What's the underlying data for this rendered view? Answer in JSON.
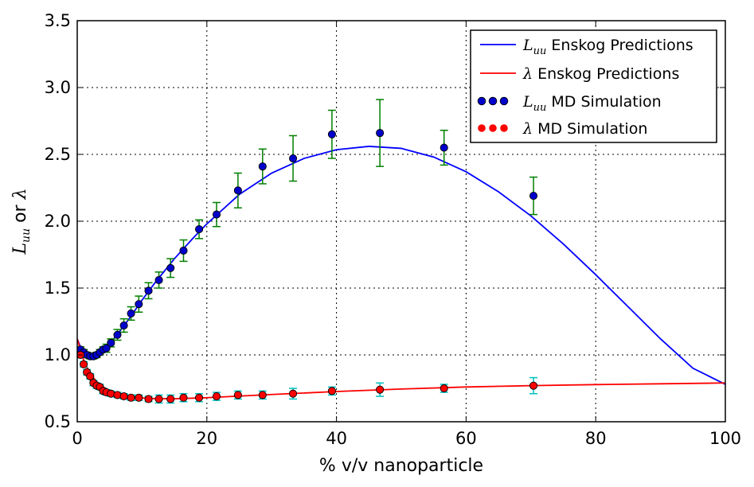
{
  "chart_data": {
    "type": "line",
    "title": "",
    "xlabel": "% v/v nanoparticle",
    "ylabel": {
      "sym1": "L",
      "sub1": "uu",
      "mid": " or ",
      "sym2": "λ"
    },
    "xlim": [
      0,
      100
    ],
    "ylim": [
      0.5,
      3.5
    ],
    "xticks": [
      0,
      20,
      40,
      60,
      80,
      100
    ],
    "yticks": [
      0.5,
      1.0,
      1.5,
      2.0,
      2.5,
      3.0,
      3.5
    ],
    "xtick_labels": [
      "0",
      "20",
      "40",
      "60",
      "80",
      "100"
    ],
    "ytick_labels": [
      "0.5",
      "1.0",
      "1.5",
      "2.0",
      "2.5",
      "3.0",
      "3.5"
    ],
    "grid": true,
    "legend_position": "top-right",
    "colors": {
      "luu_line": "#0000ff",
      "lambda_line": "#ff0000",
      "luu_points": "#0000cc",
      "luu_errorbars": "#007f00",
      "lambda_points": "#ff0000",
      "lambda_errorbars": "#00bfbf"
    },
    "legend": [
      {
        "sym": "L",
        "sub": "uu",
        "text": " Enskog Predictions",
        "kind": "line",
        "series": "luu_line"
      },
      {
        "sym": "λ",
        "sub": "",
        "text": " Enskog Predictions",
        "kind": "line",
        "series": "lambda_line"
      },
      {
        "sym": "L",
        "sub": "uu",
        "text": " MD Simulation",
        "kind": "points",
        "series": "luu_points"
      },
      {
        "sym": "λ",
        "sub": "",
        "text": " MD Simulation",
        "kind": "points",
        "series": "lambda_points"
      }
    ],
    "series": [
      {
        "id": "luu_line",
        "type": "line",
        "x": [
          0,
          0.5,
          1,
          2,
          3,
          4,
          5,
          6,
          8,
          10,
          12,
          15,
          18,
          20,
          25,
          30,
          35,
          40,
          45,
          50,
          55,
          60,
          65,
          70,
          75,
          80,
          85,
          90,
          95,
          100
        ],
        "y": [
          1.12,
          1.06,
          1.02,
          1.0,
          1.01,
          1.04,
          1.09,
          1.14,
          1.27,
          1.41,
          1.54,
          1.72,
          1.88,
          1.98,
          2.2,
          2.36,
          2.47,
          2.535,
          2.56,
          2.545,
          2.48,
          2.37,
          2.22,
          2.04,
          1.83,
          1.6,
          1.36,
          1.12,
          0.9,
          0.78
        ]
      },
      {
        "id": "lambda_line",
        "type": "line",
        "x": [
          0,
          0.5,
          1,
          2,
          3,
          4,
          5,
          6,
          8,
          10,
          12,
          15,
          20,
          25,
          30,
          40,
          50,
          60,
          70,
          80,
          90,
          100
        ],
        "y": [
          1.12,
          1.04,
          0.96,
          0.86,
          0.8,
          0.76,
          0.735,
          0.715,
          0.69,
          0.678,
          0.673,
          0.672,
          0.68,
          0.692,
          0.704,
          0.726,
          0.745,
          0.76,
          0.77,
          0.778,
          0.784,
          0.79
        ]
      },
      {
        "id": "luu_points",
        "type": "scatter",
        "x": [
          0.5,
          1.0,
          1.5,
          2.0,
          2.5,
          3.0,
          3.5,
          4.0,
          4.5,
          5.2,
          6.2,
          7.2,
          8.3,
          9.5,
          11.0,
          12.6,
          14.4,
          16.4,
          18.8,
          21.5,
          24.8,
          28.6,
          33.3,
          39.3,
          46.7,
          56.6,
          70.4
        ],
        "y": [
          1.04,
          1.02,
          1.0,
          0.99,
          0.99,
          1.0,
          1.02,
          1.04,
          1.05,
          1.09,
          1.15,
          1.22,
          1.31,
          1.38,
          1.48,
          1.56,
          1.65,
          1.78,
          1.94,
          2.05,
          2.23,
          2.41,
          2.47,
          2.65,
          2.66,
          2.55,
          2.19
        ],
        "yerr": [
          0.02,
          0.02,
          0.02,
          0.02,
          0.02,
          0.02,
          0.02,
          0.02,
          0.03,
          0.03,
          0.04,
          0.05,
          0.05,
          0.06,
          0.06,
          0.06,
          0.07,
          0.08,
          0.07,
          0.09,
          0.13,
          0.13,
          0.17,
          0.18,
          0.25,
          0.13,
          0.14
        ]
      },
      {
        "id": "lambda_points",
        "type": "scatter",
        "x": [
          0.5,
          1.0,
          1.5,
          2.0,
          2.5,
          3.0,
          3.5,
          4.0,
          4.5,
          5.2,
          6.2,
          7.2,
          8.3,
          9.5,
          11.0,
          12.6,
          14.4,
          16.4,
          18.8,
          21.5,
          24.8,
          28.6,
          33.3,
          39.3,
          46.7,
          56.6,
          70.4
        ],
        "y": [
          1.0,
          0.93,
          0.87,
          0.84,
          0.79,
          0.77,
          0.76,
          0.73,
          0.72,
          0.71,
          0.7,
          0.69,
          0.68,
          0.68,
          0.67,
          0.67,
          0.67,
          0.68,
          0.68,
          0.69,
          0.7,
          0.7,
          0.71,
          0.73,
          0.74,
          0.75,
          0.77
        ],
        "yerr": [
          0.02,
          0.02,
          0.02,
          0.02,
          0.02,
          0.02,
          0.02,
          0.02,
          0.02,
          0.02,
          0.02,
          0.02,
          0.02,
          0.02,
          0.02,
          0.03,
          0.03,
          0.03,
          0.03,
          0.03,
          0.03,
          0.03,
          0.04,
          0.03,
          0.05,
          0.03,
          0.06
        ]
      }
    ]
  }
}
